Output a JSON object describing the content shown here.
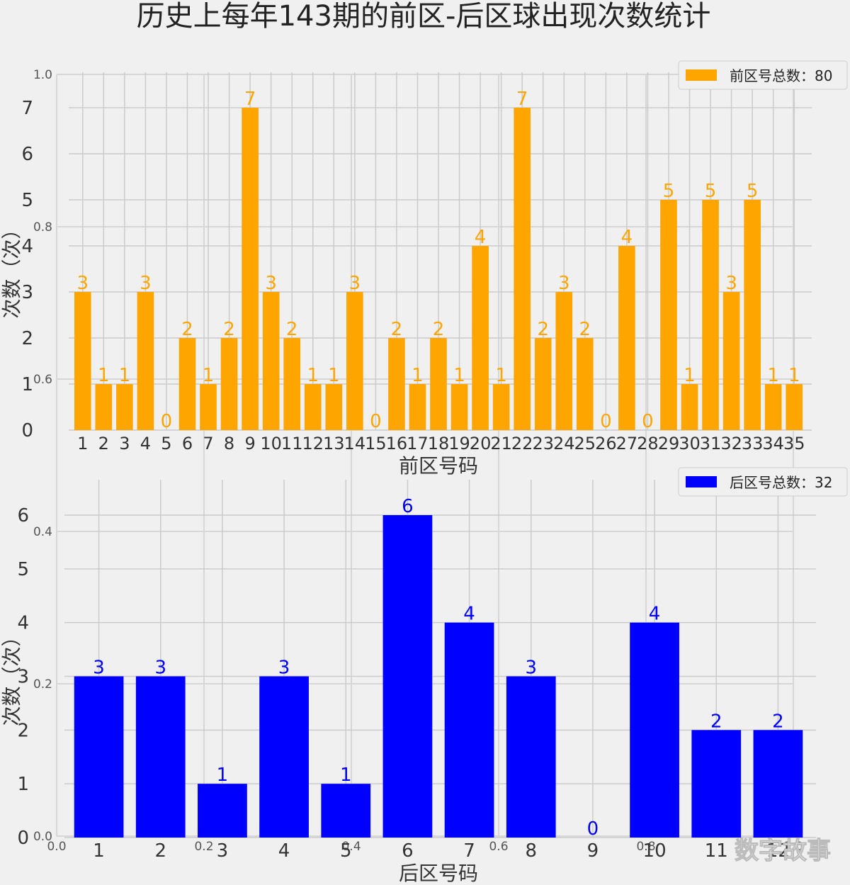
{
  "title": "历史上每年143期的前区-后区球出现次数统计",
  "watermark": "数字故事",
  "background_axes": {
    "ticks": [
      "0.0",
      "0.2",
      "0.4",
      "0.6",
      "0.8",
      "1.0"
    ]
  },
  "colors": {
    "front": "#ffa500",
    "back": "#0000ff",
    "background": "#f0f0f0",
    "grid": "#cbcbcb",
    "text": "#333333"
  },
  "chart_data": [
    {
      "type": "bar",
      "xlabel": "前区号码",
      "ylabel": "次数（次）",
      "ylim": [
        0,
        7
      ],
      "grid": true,
      "legend": {
        "label": "前区号总数：80",
        "position": "top-right"
      },
      "categories": [
        "1",
        "2",
        "3",
        "4",
        "5",
        "6",
        "7",
        "8",
        "9",
        "10",
        "11",
        "12",
        "13",
        "14",
        "15",
        "16",
        "17",
        "18",
        "19",
        "20",
        "21",
        "22",
        "23",
        "24",
        "25",
        "26",
        "27",
        "28",
        "29",
        "30",
        "31",
        "32",
        "33",
        "34",
        "35"
      ],
      "values": [
        3,
        1,
        1,
        3,
        0,
        2,
        1,
        2,
        7,
        3,
        2,
        1,
        1,
        3,
        0,
        2,
        1,
        2,
        1,
        4,
        1,
        7,
        2,
        3,
        2,
        0,
        4,
        0,
        5,
        1,
        5,
        3,
        5,
        1,
        1
      ],
      "color": "#ffa500"
    },
    {
      "type": "bar",
      "xlabel": "后区号码",
      "ylabel": "次数（次）",
      "ylim": [
        0,
        6
      ],
      "grid": true,
      "legend": {
        "label": "后区号总数：32",
        "position": "top-right"
      },
      "categories": [
        "1",
        "2",
        "3",
        "4",
        "5",
        "6",
        "7",
        "8",
        "9",
        "10",
        "11",
        "12"
      ],
      "values": [
        3,
        3,
        1,
        3,
        1,
        6,
        4,
        3,
        0,
        4,
        2,
        2
      ],
      "color": "#0000ff"
    }
  ]
}
